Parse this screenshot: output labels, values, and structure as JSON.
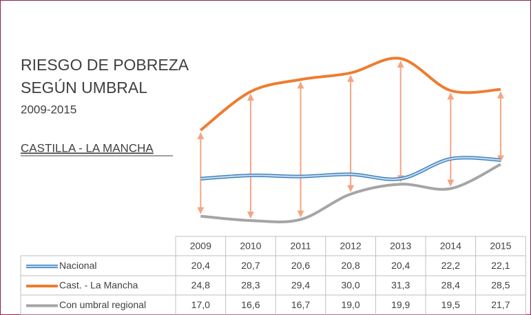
{
  "chart_data": {
    "type": "line",
    "title": [
      "RIESGO DE POBREZA",
      "SEGÚN UMBRAL"
    ],
    "subtitle": "2009-2015",
    "annotation": "CASTILLA - LA MANCHA",
    "categories": [
      "2009",
      "2010",
      "2011",
      "2012",
      "2013",
      "2014",
      "2015"
    ],
    "series": [
      {
        "name": "Nacional",
        "color": "#5b9bd5",
        "values": [
          20.4,
          20.7,
          20.6,
          20.8,
          20.4,
          22.2,
          22.1
        ],
        "value_labels": [
          "20,4",
          "20,7",
          "20,6",
          "20,8",
          "20,4",
          "22,2",
          "22,1"
        ]
      },
      {
        "name": "Cast. - La Mancha",
        "color": "#ed7d31",
        "values": [
          24.8,
          28.3,
          29.4,
          30.0,
          31.3,
          28.4,
          28.5
        ],
        "value_labels": [
          "24,8",
          "28,3",
          "29,4",
          "30,0",
          "31,3",
          "28,4",
          "28,5"
        ]
      },
      {
        "name": "Con umbral regional",
        "color": "#a5a5a5",
        "values": [
          17.0,
          16.6,
          16.7,
          19.0,
          19.9,
          19.5,
          21.7
        ],
        "value_labels": [
          "17,0",
          "16,6",
          "16,7",
          "19,0",
          "19,9",
          "19,5",
          "21,7"
        ]
      }
    ],
    "arrow_color": "#f4a582"
  }
}
